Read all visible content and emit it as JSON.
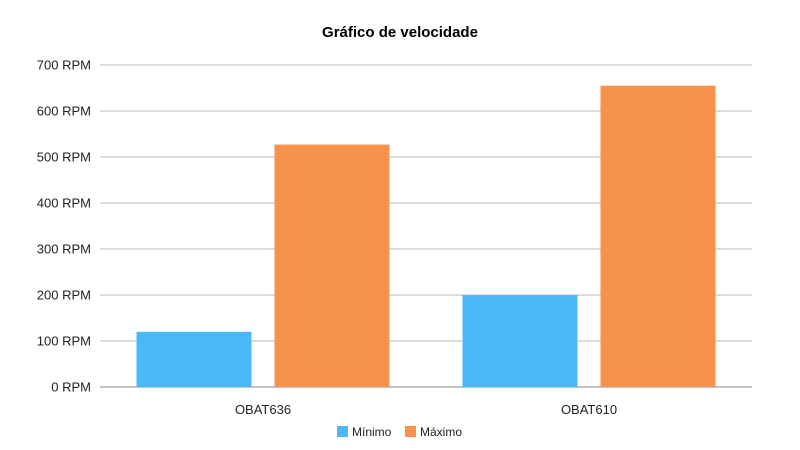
{
  "chart_data": {
    "type": "bar",
    "title": "Gráfico de velocidade",
    "xlabel": "",
    "ylabel": "",
    "categories": [
      "OBAT636",
      "OBAT610"
    ],
    "series": [
      {
        "name": "Mínimo",
        "values": [
          120,
          200
        ],
        "color": "#4cb9f7"
      },
      {
        "name": "Máximo",
        "values": [
          527,
          655
        ],
        "color": "#f7924b"
      }
    ],
    "ylim": [
      0,
      700
    ],
    "yticks": [
      0,
      100,
      200,
      300,
      400,
      500,
      600,
      700
    ],
    "tick_suffix": " RPM",
    "tick_labels": [
      "0 RPM",
      "100 RPM",
      "200 RPM",
      "300 RPM",
      "400 RPM",
      "500 RPM",
      "600 RPM",
      "700 RPM"
    ],
    "grid": true,
    "legend_position": "bottom-center",
    "gridline_color": "#b8b8b8",
    "axis_color": "#8a8a8a"
  }
}
